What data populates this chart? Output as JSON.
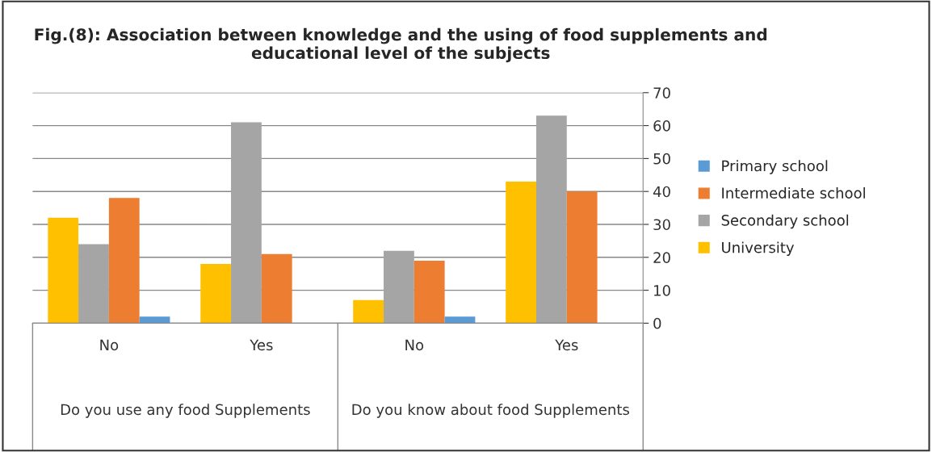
{
  "chart_data": {
    "type": "bar",
    "title": "Fig.(8): Association between knowledge and the using of food supplements and educational level of the subjects",
    "categories": [
      "No",
      "Yes",
      "No",
      "Yes"
    ],
    "series": [
      {
        "name": "University",
        "color": "#ffc000",
        "values": [
          32,
          18,
          7,
          43
        ]
      },
      {
        "name": "Secondary school",
        "color": "#a5a5a5",
        "values": [
          24,
          61,
          22,
          63
        ]
      },
      {
        "name": "Intermediate school",
        "color": "#ed7d31",
        "values": [
          38,
          21,
          19,
          40
        ]
      },
      {
        "name": "Primary school",
        "color": "#5b9bd5",
        "values": [
          2,
          null,
          2,
          null
        ]
      }
    ],
    "annotations": [
      "Do you use any food Supplements",
      "Do you know about food Supplements"
    ],
    "ylim": [
      0,
      70
    ],
    "yticks": [
      0,
      10,
      20,
      30,
      40,
      50,
      60,
      70
    ],
    "grid": "y",
    "legend": "right"
  }
}
